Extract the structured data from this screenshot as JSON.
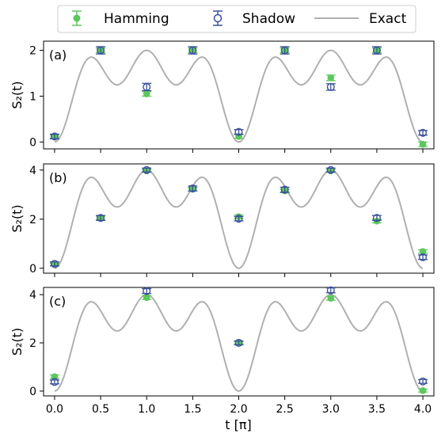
{
  "legend": {
    "hamming": "Hamming",
    "shadow": "Shadow",
    "exact": "Exact"
  },
  "colors": {
    "hamming": "#5cc85c",
    "shadow": "#3a5199",
    "exact": "#b0b0b0",
    "axis": "#000000"
  },
  "xlabel": "t [π]",
  "ylabel": "S₂(t)",
  "chart_data": [
    {
      "type": "scatter",
      "panel": "(a)",
      "ylabel": "S₂(t)",
      "xlim": [
        -0.12,
        4.12
      ],
      "ylim": [
        -0.15,
        2.2
      ],
      "yticks": [
        0,
        1,
        2
      ],
      "x": [
        0,
        0.5,
        1.0,
        1.5,
        2.0,
        2.5,
        3.0,
        3.5,
        4.0
      ],
      "series": [
        {
          "name": "Hamming",
          "values": [
            0.12,
            2.0,
            1.05,
            2.0,
            0.12,
            2.0,
            1.4,
            2.0,
            -0.05
          ],
          "err": [
            0.04,
            0.05,
            0.05,
            0.05,
            0.04,
            0.05,
            0.06,
            0.05,
            0.05
          ]
        },
        {
          "name": "Shadow",
          "values": [
            0.12,
            2.0,
            1.2,
            2.0,
            0.22,
            2.0,
            1.2,
            2.0,
            0.2
          ],
          "err": [
            0.05,
            0.08,
            0.08,
            0.08,
            0.05,
            0.08,
            0.07,
            0.08,
            0.05
          ]
        },
        {
          "name": "Exact",
          "kind": "curve",
          "harmonics": [
            0.75,
            0.5,
            0.75,
            0.0
          ],
          "offset": 0.0,
          "scale": 1.0
        }
      ]
    },
    {
      "type": "scatter",
      "panel": "(b)",
      "ylabel": "S₂(t)",
      "xlim": [
        -0.12,
        4.12
      ],
      "ylim": [
        -0.2,
        4.25
      ],
      "yticks": [
        0,
        2,
        4
      ],
      "x": [
        0,
        0.5,
        1.0,
        1.5,
        2.0,
        2.5,
        3.0,
        3.5,
        4.0
      ],
      "series": [
        {
          "name": "Hamming",
          "values": [
            0.15,
            2.05,
            3.97,
            3.22,
            2.1,
            3.15,
            3.97,
            1.92,
            0.68
          ],
          "err": [
            0.06,
            0.07,
            0.06,
            0.07,
            0.07,
            0.07,
            0.06,
            0.07,
            0.07
          ]
        },
        {
          "name": "Shadow",
          "values": [
            0.18,
            2.05,
            4.0,
            3.25,
            2.02,
            3.2,
            4.0,
            2.05,
            0.45
          ],
          "err": [
            0.08,
            0.1,
            0.08,
            0.1,
            0.09,
            0.1,
            0.08,
            0.1,
            0.09
          ]
        },
        {
          "name": "Exact",
          "kind": "curve",
          "harmonics": [
            1.5,
            1.0,
            1.5,
            0.0
          ],
          "offset": 0.0,
          "scale": 1.0
        }
      ]
    },
    {
      "type": "scatter",
      "panel": "(c)",
      "ylabel": "S₂(t)",
      "xlim": [
        -0.12,
        4.12
      ],
      "ylim": [
        -0.2,
        4.3
      ],
      "yticks": [
        0,
        2,
        4
      ],
      "x": [
        0,
        1.0,
        2.0,
        3.0,
        4.0
      ],
      "series": [
        {
          "name": "Hamming",
          "values": [
            0.6,
            3.88,
            2.0,
            3.85,
            0.02
          ],
          "err": [
            0.07,
            0.08,
            0.06,
            0.08,
            0.06
          ]
        },
        {
          "name": "Shadow",
          "values": [
            0.38,
            4.15,
            2.0,
            4.18,
            0.4
          ],
          "err": [
            0.08,
            0.1,
            0.08,
            0.1,
            0.08
          ]
        },
        {
          "name": "Exact",
          "kind": "curve",
          "harmonics": [
            1.5,
            1.0,
            1.5,
            0.0
          ],
          "offset": 0.0,
          "scale": 1.0
        }
      ]
    }
  ],
  "xticks": [
    "0.0",
    "0.5",
    "1.0",
    "1.5",
    "2.0",
    "2.5",
    "3.0",
    "3.5",
    "4.0"
  ]
}
